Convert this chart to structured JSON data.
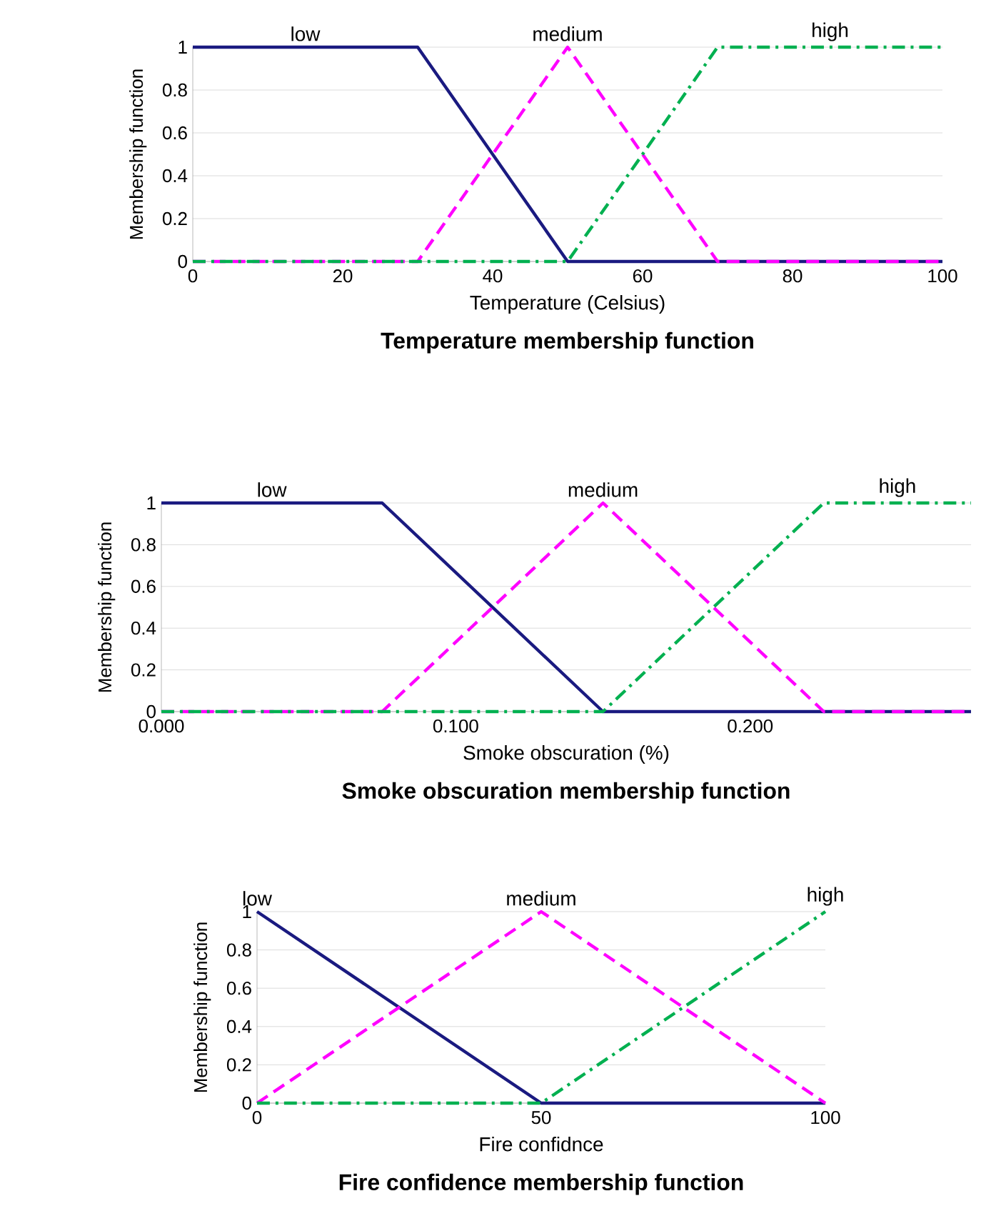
{
  "chart_data": [
    {
      "type": "line",
      "title": "Temperature membership function",
      "xlabel": "Temperature (Celsius)",
      "ylabel": "Membership function",
      "xlim": [
        0,
        100
      ],
      "ylim": [
        0,
        1
      ],
      "xticks": [
        0,
        20,
        40,
        60,
        80,
        100
      ],
      "yticks": [
        0,
        0.2,
        0.4,
        0.6,
        0.8,
        1
      ],
      "grid": "y",
      "legend": false,
      "series": [
        {
          "name": "low",
          "color": "#1a1a80",
          "line_style": "solid",
          "x": [
            0,
            30,
            50,
            100
          ],
          "values": [
            1,
            1,
            0,
            0
          ]
        },
        {
          "name": "medium",
          "color": "#ff00ff",
          "line_style": "dashed",
          "x": [
            0,
            30,
            50,
            70,
            100
          ],
          "values": [
            0,
            0,
            1,
            0,
            0
          ]
        },
        {
          "name": "high",
          "color": "#00b050",
          "line_style": "dashdot",
          "x": [
            0,
            50,
            70,
            100
          ],
          "values": [
            0,
            0,
            1,
            1
          ]
        }
      ]
    },
    {
      "type": "line",
      "title": "Smoke obscuration membership function",
      "xlabel": "Smoke obscuration (%)",
      "ylabel": "Membership function",
      "xlim": [
        0,
        0.275
      ],
      "ylim": [
        0,
        1
      ],
      "xticks": [
        {
          "value": 0,
          "label": "0.000"
        },
        {
          "value": 0.1,
          "label": "0.100"
        },
        {
          "value": 0.2,
          "label": "0.200"
        }
      ],
      "yticks": [
        0,
        0.2,
        0.4,
        0.6,
        0.8,
        1
      ],
      "grid": "y",
      "legend": false,
      "series": [
        {
          "name": "low",
          "color": "#1a1a80",
          "line_style": "solid",
          "x": [
            0,
            0.075,
            0.15,
            0.275
          ],
          "values": [
            1,
            1,
            0,
            0
          ]
        },
        {
          "name": "medium",
          "color": "#ff00ff",
          "line_style": "dashed",
          "x": [
            0,
            0.075,
            0.15,
            0.225,
            0.275
          ],
          "values": [
            0,
            0,
            1,
            0,
            0
          ]
        },
        {
          "name": "high",
          "color": "#00b050",
          "line_style": "dashdot",
          "x": [
            0,
            0.15,
            0.225,
            0.275
          ],
          "values": [
            0,
            0,
            1,
            1
          ]
        }
      ]
    },
    {
      "type": "line",
      "title": "Fire confidence membership function",
      "xlabel": "Fire confidnce",
      "ylabel": "Membership function",
      "xlim": [
        0,
        100
      ],
      "ylim": [
        0,
        1
      ],
      "xticks": [
        0,
        50,
        100
      ],
      "yticks": [
        0,
        0.2,
        0.4,
        0.6,
        0.8,
        1
      ],
      "grid": "y",
      "legend": false,
      "series": [
        {
          "name": "low",
          "color": "#1a1a80",
          "line_style": "solid",
          "x": [
            0,
            50,
            100
          ],
          "values": [
            1,
            0,
            0
          ]
        },
        {
          "name": "medium",
          "color": "#ff00ff",
          "line_style": "dashed",
          "x": [
            0,
            50,
            100
          ],
          "values": [
            0,
            1,
            0
          ]
        },
        {
          "name": "high",
          "color": "#00b050",
          "line_style": "dashdot",
          "x": [
            0,
            50,
            100
          ],
          "values": [
            0,
            0,
            1
          ]
        }
      ]
    }
  ]
}
